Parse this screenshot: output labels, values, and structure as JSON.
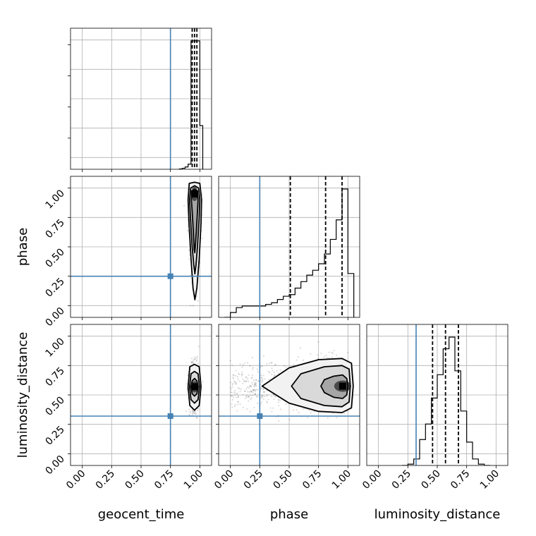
{
  "chart_data": {
    "type": "corner",
    "parameters": [
      "geocent_time",
      "phase",
      "luminosity_distance"
    ],
    "axis_labels": {
      "x": [
        "geocent_time",
        "phase",
        "luminosity_distance"
      ],
      "y": [
        "",
        "phase",
        "luminosity_distance"
      ]
    },
    "tick_labels": [
      "0.00",
      "0.25",
      "0.50",
      "0.75",
      "1.00"
    ],
    "range": [
      -0.1,
      1.1
    ],
    "grid": true,
    "colors": {
      "truth": "#4682b4",
      "contour": "#000000",
      "hist": "#000000",
      "grid": "#b0b0b0"
    },
    "truths": {
      "geocent_time": 0.75,
      "phase": 0.25,
      "luminosity_distance": 0.32
    },
    "quantiles": {
      "geocent_time": [
        0.935,
        0.955,
        0.975
      ],
      "phase": [
        0.51,
        0.81,
        0.95
      ],
      "luminosity_distance": [
        0.46,
        0.57,
        0.68
      ]
    },
    "histograms": {
      "geocent_time": {
        "edges": [
          0.825,
          0.85,
          0.875,
          0.9,
          0.925,
          0.95,
          0.975,
          1.0,
          1.025
        ],
        "counts": [
          0.2,
          0.8,
          1.8,
          4.0,
          100,
          100,
          100,
          34
        ]
      },
      "phase": {
        "edges": [
          -0.05,
          0.0,
          0.05,
          0.1,
          0.15,
          0.2,
          0.25,
          0.3,
          0.35,
          0.4,
          0.45,
          0.5,
          0.55,
          0.6,
          0.65,
          0.7,
          0.75,
          0.8,
          0.85,
          0.9,
          0.95,
          1.0,
          1.05
        ],
        "counts": [
          0,
          3,
          6,
          7,
          7,
          7,
          7,
          8,
          9,
          11,
          13,
          14,
          18,
          22,
          26,
          29,
          33,
          39,
          48,
          60,
          79,
          27
        ]
      },
      "luminosity_distance": {
        "edges": [
          0.2,
          0.25,
          0.3,
          0.35,
          0.4,
          0.45,
          0.5,
          0.55,
          0.6,
          0.65,
          0.7,
          0.75,
          0.8,
          0.85,
          0.9,
          0.95
        ],
        "counts": [
          0,
          1,
          5,
          20,
          32,
          52,
          70,
          90,
          99,
          73,
          42,
          18,
          5,
          1,
          0
        ]
      }
    },
    "panels_2d": [
      {
        "x": "geocent_time",
        "y": "phase",
        "center": [
          0.955,
          0.95
        ],
        "contours": [
          [
            [
              0.955,
              0.99
            ],
            [
              0.98,
              0.97
            ],
            [
              0.985,
              0.9
            ],
            [
              0.98,
              0.8
            ],
            [
              0.97,
              0.62
            ],
            [
              0.96,
              0.48
            ],
            [
              0.957,
              0.45
            ],
            [
              0.952,
              0.48
            ],
            [
              0.945,
              0.62
            ],
            [
              0.935,
              0.8
            ],
            [
              0.928,
              0.9
            ],
            [
              0.932,
              0.97
            ]
          ],
          [
            [
              0.955,
              1.02
            ],
            [
              0.99,
              1.0
            ],
            [
              1.0,
              0.9
            ],
            [
              0.995,
              0.75
            ],
            [
              0.98,
              0.5
            ],
            [
              0.968,
              0.35
            ],
            [
              0.958,
              0.27
            ],
            [
              0.948,
              0.35
            ],
            [
              0.935,
              0.5
            ],
            [
              0.92,
              0.75
            ],
            [
              0.913,
              0.9
            ],
            [
              0.922,
              1.0
            ]
          ],
          [
            [
              0.955,
              1.05
            ],
            [
              1.0,
              1.04
            ],
            [
              1.015,
              0.9
            ],
            [
              1.01,
              0.7
            ],
            [
              0.995,
              0.4
            ],
            [
              0.975,
              0.15
            ],
            [
              0.958,
              0.05
            ],
            [
              0.942,
              0.15
            ],
            [
              0.925,
              0.4
            ],
            [
              0.908,
              0.7
            ],
            [
              0.9,
              0.9
            ],
            [
              0.91,
              1.04
            ]
          ]
        ]
      },
      {
        "x": "geocent_time",
        "y": "luminosity_distance",
        "center": [
          0.955,
          0.57
        ],
        "contours": [
          [
            [
              0.955,
              0.64
            ],
            [
              0.975,
              0.62
            ],
            [
              0.985,
              0.57
            ],
            [
              0.975,
              0.51
            ],
            [
              0.955,
              0.49
            ],
            [
              0.935,
              0.51
            ],
            [
              0.925,
              0.57
            ],
            [
              0.935,
              0.62
            ]
          ],
          [
            [
              0.955,
              0.7
            ],
            [
              0.985,
              0.68
            ],
            [
              0.997,
              0.57
            ],
            [
              0.985,
              0.46
            ],
            [
              0.955,
              0.43
            ],
            [
              0.925,
              0.46
            ],
            [
              0.913,
              0.57
            ],
            [
              0.925,
              0.68
            ]
          ],
          [
            [
              0.955,
              0.76
            ],
            [
              0.995,
              0.74
            ],
            [
              1.01,
              0.57
            ],
            [
              0.995,
              0.41
            ],
            [
              0.955,
              0.37
            ],
            [
              0.915,
              0.41
            ],
            [
              0.9,
              0.57
            ],
            [
              0.915,
              0.74
            ]
          ]
        ]
      },
      {
        "x": "phase",
        "y": "luminosity_distance",
        "center": [
          0.955,
          0.575
        ],
        "contours": [
          [
            [
              0.955,
              0.67
            ],
            [
              0.99,
              0.64
            ],
            [
              1.0,
              0.575
            ],
            [
              0.99,
              0.5
            ],
            [
              0.955,
              0.47
            ],
            [
              0.88,
              0.48
            ],
            [
              0.8,
              0.52
            ],
            [
              0.77,
              0.575
            ],
            [
              0.8,
              0.63
            ],
            [
              0.88,
              0.66
            ]
          ],
          [
            [
              0.95,
              0.75
            ],
            [
              1.01,
              0.72
            ],
            [
              1.02,
              0.575
            ],
            [
              1.01,
              0.44
            ],
            [
              0.95,
              0.4
            ],
            [
              0.8,
              0.41
            ],
            [
              0.6,
              0.47
            ],
            [
              0.52,
              0.575
            ],
            [
              0.6,
              0.68
            ],
            [
              0.8,
              0.74
            ]
          ],
          [
            [
              0.95,
              0.81
            ],
            [
              1.03,
              0.77
            ],
            [
              1.045,
              0.575
            ],
            [
              1.03,
              0.39
            ],
            [
              0.95,
              0.35
            ],
            [
              0.75,
              0.36
            ],
            [
              0.5,
              0.43
            ],
            [
              0.27,
              0.575
            ],
            [
              0.5,
              0.73
            ],
            [
              0.75,
              0.8
            ]
          ]
        ]
      }
    ]
  }
}
